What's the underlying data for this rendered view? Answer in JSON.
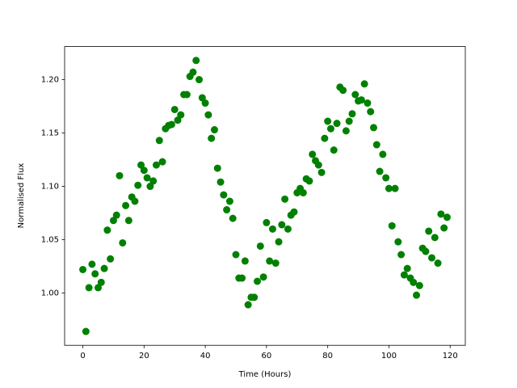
{
  "chart_data": {
    "type": "scatter",
    "xlabel": "Time (Hours)",
    "ylabel": "Normalised Flux",
    "x": [
      0,
      1,
      2,
      3,
      4,
      5,
      6,
      7,
      8,
      9,
      10,
      11,
      12,
      13,
      14,
      15,
      16,
      17,
      18,
      19,
      20,
      21,
      22,
      23,
      24,
      25,
      26,
      27,
      28,
      29,
      30,
      31,
      32,
      33,
      34,
      35,
      36,
      37,
      38,
      39,
      40,
      41,
      42,
      43,
      44,
      45,
      46,
      47,
      48,
      49,
      50,
      51,
      52,
      53,
      54,
      55,
      56,
      57,
      58,
      59,
      60,
      61,
      62,
      63,
      64,
      65,
      66,
      67,
      68,
      69,
      70,
      71,
      72,
      73,
      74,
      75,
      76,
      77,
      78,
      79,
      80,
      81,
      82,
      83,
      84,
      85,
      86,
      87,
      88,
      89,
      90,
      91,
      92,
      93,
      94,
      95,
      96,
      97,
      98,
      99,
      100,
      101,
      102,
      103,
      104,
      105,
      106,
      107,
      108,
      109,
      110,
      111,
      112,
      113,
      114,
      115,
      116,
      117,
      118,
      119
    ],
    "y": [
      1.022,
      0.964,
      1.005,
      1.027,
      1.018,
      1.005,
      1.01,
      1.023,
      1.059,
      1.032,
      1.068,
      1.073,
      1.11,
      1.047,
      1.082,
      1.068,
      1.09,
      1.086,
      1.101,
      1.12,
      1.115,
      1.108,
      1.1,
      1.105,
      1.12,
      1.143,
      1.123,
      1.154,
      1.157,
      1.158,
      1.172,
      1.162,
      1.167,
      1.186,
      1.186,
      1.203,
      1.207,
      1.218,
      1.2,
      1.183,
      1.178,
      1.167,
      1.145,
      1.153,
      1.117,
      1.104,
      1.092,
      1.078,
      1.086,
      1.07,
      1.036,
      1.014,
      1.014,
      1.03,
      0.989,
      0.996,
      0.996,
      1.011,
      1.044,
      1.015,
      1.066,
      1.03,
      1.06,
      1.028,
      1.048,
      1.064,
      1.088,
      1.06,
      1.073,
      1.076,
      1.094,
      1.098,
      1.094,
      1.107,
      1.105,
      1.13,
      1.124,
      1.12,
      1.113,
      1.145,
      1.161,
      1.154,
      1.134,
      1.159,
      1.193,
      1.19,
      1.152,
      1.161,
      1.168,
      1.186,
      1.18,
      1.181,
      1.196,
      1.178,
      1.17,
      1.155,
      1.139,
      1.114,
      1.13,
      1.108,
      1.098,
      1.063,
      1.098,
      1.048,
      1.036,
      1.017,
      1.023,
      1.014,
      1.01,
      0.998,
      1.007,
      1.042,
      1.039,
      1.058,
      1.033,
      1.052,
      1.028,
      1.074,
      1.061,
      1.071
    ],
    "color": "green",
    "xlim": [
      -5.95,
      124.95
    ],
    "ylim": [
      0.951,
      1.231
    ],
    "xticks": [
      0,
      20,
      40,
      60,
      80,
      100,
      120
    ],
    "yticks": [
      {
        "value": 1.0,
        "label": "1.00"
      },
      {
        "value": 1.05,
        "label": "1.05"
      },
      {
        "value": 1.1,
        "label": "1.10"
      },
      {
        "value": 1.15,
        "label": "1.15"
      },
      {
        "value": 1.2,
        "label": "1.20"
      }
    ],
    "grid": false
  }
}
